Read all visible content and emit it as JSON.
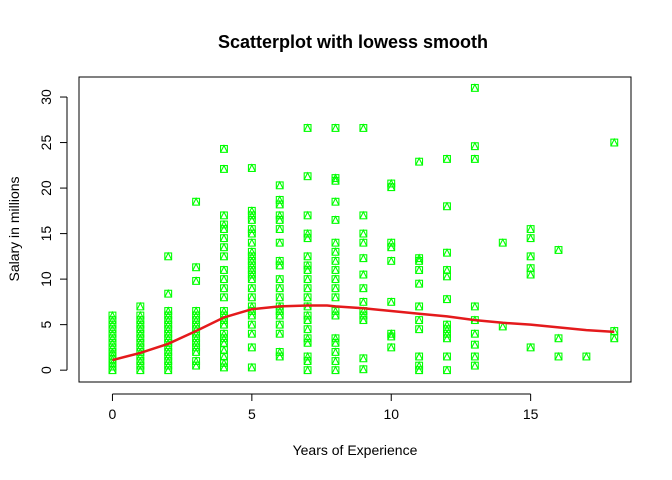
{
  "chart_data": {
    "type": "scatter",
    "title": "Scatterplot with lowess smooth",
    "xlabel": "Years of Experience",
    "ylabel": "Salary in millions",
    "xlim": [
      -1.2,
      18.6
    ],
    "ylim": [
      -1.3,
      32.2
    ],
    "x_ticks": [
      0,
      5,
      10,
      15
    ],
    "y_ticks": [
      0,
      5,
      10,
      15,
      20,
      25,
      30
    ],
    "grid": false,
    "legend": "none",
    "point_color": "#00ff00",
    "point_marker": "square-with-triangle",
    "line_color": "#e41a1c",
    "points": [
      [
        0,
        0.0
      ],
      [
        0,
        0.4
      ],
      [
        0,
        0.8
      ],
      [
        0,
        1.2
      ],
      [
        0,
        1.6
      ],
      [
        0,
        2.0
      ],
      [
        0,
        2.5
      ],
      [
        0,
        3.0
      ],
      [
        0,
        3.5
      ],
      [
        0,
        4.0
      ],
      [
        0,
        4.5
      ],
      [
        0,
        5.0
      ],
      [
        0,
        5.5
      ],
      [
        0,
        6.0
      ],
      [
        1,
        0.0
      ],
      [
        1,
        0.5
      ],
      [
        1,
        1.0
      ],
      [
        1,
        1.5
      ],
      [
        1,
        2.0
      ],
      [
        1,
        2.5
      ],
      [
        1,
        3.0
      ],
      [
        1,
        3.5
      ],
      [
        1,
        4.0
      ],
      [
        1,
        4.5
      ],
      [
        1,
        5.0
      ],
      [
        1,
        5.5
      ],
      [
        1,
        6.0
      ],
      [
        1,
        7.0
      ],
      [
        2,
        0.0
      ],
      [
        2,
        0.5
      ],
      [
        2,
        1.0
      ],
      [
        2,
        1.5
      ],
      [
        2,
        2.0
      ],
      [
        2,
        2.5
      ],
      [
        2,
        3.0
      ],
      [
        2,
        3.5
      ],
      [
        2,
        4.0
      ],
      [
        2,
        4.5
      ],
      [
        2,
        5.0
      ],
      [
        2,
        5.5
      ],
      [
        2,
        6.0
      ],
      [
        2,
        6.5
      ],
      [
        2,
        8.4
      ],
      [
        2,
        12.5
      ],
      [
        3,
        0.5
      ],
      [
        3,
        1.0
      ],
      [
        3,
        2.0
      ],
      [
        3,
        2.5
      ],
      [
        3,
        3.0
      ],
      [
        3,
        3.5
      ],
      [
        3,
        4.0
      ],
      [
        3,
        4.5
      ],
      [
        3,
        5.0
      ],
      [
        3,
        5.5
      ],
      [
        3,
        6.0
      ],
      [
        3,
        6.5
      ],
      [
        3,
        9.8
      ],
      [
        3,
        11.3
      ],
      [
        3,
        18.5
      ],
      [
        4,
        0.3
      ],
      [
        4,
        0.8
      ],
      [
        4,
        1.5
      ],
      [
        4,
        2.2
      ],
      [
        4,
        3.0
      ],
      [
        4,
        3.5
      ],
      [
        4,
        4.0
      ],
      [
        4,
        5.0
      ],
      [
        4,
        5.5
      ],
      [
        4,
        6.0
      ],
      [
        4,
        6.5
      ],
      [
        4,
        8.0
      ],
      [
        4,
        9.0
      ],
      [
        4,
        10.0
      ],
      [
        4,
        11.0
      ],
      [
        4,
        12.5
      ],
      [
        4,
        13.5
      ],
      [
        4,
        14.5
      ],
      [
        4,
        15.5
      ],
      [
        4,
        16.0
      ],
      [
        4,
        17.0
      ],
      [
        4,
        22.1
      ],
      [
        4,
        24.3
      ],
      [
        5,
        0.3
      ],
      [
        5,
        2.5
      ],
      [
        5,
        4.0
      ],
      [
        5,
        5.0
      ],
      [
        5,
        6.0
      ],
      [
        5,
        6.5
      ],
      [
        5,
        7.0
      ],
      [
        5,
        8.0
      ],
      [
        5,
        9.0
      ],
      [
        5,
        10.0
      ],
      [
        5,
        10.5
      ],
      [
        5,
        11.0
      ],
      [
        5,
        11.5
      ],
      [
        5,
        12.0
      ],
      [
        5,
        12.5
      ],
      [
        5,
        13.0
      ],
      [
        5,
        14.0
      ],
      [
        5,
        15.0
      ],
      [
        5,
        15.5
      ],
      [
        5,
        16.5
      ],
      [
        5,
        17.0
      ],
      [
        5,
        17.5
      ],
      [
        5,
        22.2
      ],
      [
        6,
        1.5
      ],
      [
        6,
        2.0
      ],
      [
        6,
        4.0
      ],
      [
        6,
        5.0
      ],
      [
        6,
        6.0
      ],
      [
        6,
        6.5
      ],
      [
        6,
        7.0
      ],
      [
        6,
        8.0
      ],
      [
        6,
        9.0
      ],
      [
        6,
        10.0
      ],
      [
        6,
        11.5
      ],
      [
        6,
        12.0
      ],
      [
        6,
        14.0
      ],
      [
        6,
        15.5
      ],
      [
        6,
        16.5
      ],
      [
        6,
        17.0
      ],
      [
        6,
        18.2
      ],
      [
        6,
        18.7
      ],
      [
        6,
        20.3
      ],
      [
        7,
        0.0
      ],
      [
        7,
        1.0
      ],
      [
        7,
        1.5
      ],
      [
        7,
        3.0
      ],
      [
        7,
        3.5
      ],
      [
        7,
        4.5
      ],
      [
        7,
        5.5
      ],
      [
        7,
        6.0
      ],
      [
        7,
        7.0
      ],
      [
        7,
        8.0
      ],
      [
        7,
        9.0
      ],
      [
        7,
        10.0
      ],
      [
        7,
        11.0
      ],
      [
        7,
        11.5
      ],
      [
        7,
        12.5
      ],
      [
        7,
        14.5
      ],
      [
        7,
        15.0
      ],
      [
        7,
        17.0
      ],
      [
        7,
        21.3
      ],
      [
        7,
        26.6
      ],
      [
        8,
        0.0
      ],
      [
        8,
        1.0
      ],
      [
        8,
        2.0
      ],
      [
        8,
        3.0
      ],
      [
        8,
        3.5
      ],
      [
        8,
        6.0
      ],
      [
        8,
        6.5
      ],
      [
        8,
        8.0
      ],
      [
        8,
        9.0
      ],
      [
        8,
        10.0
      ],
      [
        8,
        11.0
      ],
      [
        8,
        12.0
      ],
      [
        8,
        13.0
      ],
      [
        8,
        14.0
      ],
      [
        8,
        16.5
      ],
      [
        8,
        18.5
      ],
      [
        8,
        20.8
      ],
      [
        8,
        21.1
      ],
      [
        8,
        26.6
      ],
      [
        9,
        0.1
      ],
      [
        9,
        1.3
      ],
      [
        9,
        5.5
      ],
      [
        9,
        6.0
      ],
      [
        9,
        6.5
      ],
      [
        9,
        7.5
      ],
      [
        9,
        9.0
      ],
      [
        9,
        10.5
      ],
      [
        9,
        12.3
      ],
      [
        9,
        14.0
      ],
      [
        9,
        15.0
      ],
      [
        9,
        17.0
      ],
      [
        9,
        26.6
      ],
      [
        10,
        2.5
      ],
      [
        10,
        3.7
      ],
      [
        10,
        4.0
      ],
      [
        10,
        7.5
      ],
      [
        10,
        12.0
      ],
      [
        10,
        13.5
      ],
      [
        10,
        14.0
      ],
      [
        10,
        20.1
      ],
      [
        10,
        20.5
      ],
      [
        11,
        0.0
      ],
      [
        11,
        0.5
      ],
      [
        11,
        1.5
      ],
      [
        11,
        4.5
      ],
      [
        11,
        5.5
      ],
      [
        11,
        7.0
      ],
      [
        11,
        9.5
      ],
      [
        11,
        11.0
      ],
      [
        11,
        12.0
      ],
      [
        11,
        12.3
      ],
      [
        11,
        22.9
      ],
      [
        12,
        0.0
      ],
      [
        12,
        1.5
      ],
      [
        12,
        3.5
      ],
      [
        12,
        4.0
      ],
      [
        12,
        4.5
      ],
      [
        12,
        5.0
      ],
      [
        12,
        7.8
      ],
      [
        12,
        10.3
      ],
      [
        12,
        11.0
      ],
      [
        12,
        12.9
      ],
      [
        12,
        18.0
      ],
      [
        12,
        23.2
      ],
      [
        13,
        0.5
      ],
      [
        13,
        1.5
      ],
      [
        13,
        2.8
      ],
      [
        13,
        4.0
      ],
      [
        13,
        5.5
      ],
      [
        13,
        7.0
      ],
      [
        13,
        23.2
      ],
      [
        13,
        24.6
      ],
      [
        13,
        31.0
      ],
      [
        14,
        4.8
      ],
      [
        14,
        14.0
      ],
      [
        15,
        2.5
      ],
      [
        15,
        10.5
      ],
      [
        15,
        11.2
      ],
      [
        15,
        12.5
      ],
      [
        15,
        14.5
      ],
      [
        15,
        15.5
      ],
      [
        16,
        1.5
      ],
      [
        16,
        3.5
      ],
      [
        16,
        13.2
      ],
      [
        17,
        1.5
      ],
      [
        18,
        3.5
      ],
      [
        18,
        4.3
      ],
      [
        18,
        25.0
      ]
    ],
    "lowess": [
      [
        0,
        1.1
      ],
      [
        1,
        1.9
      ],
      [
        2,
        2.9
      ],
      [
        3,
        4.3
      ],
      [
        4,
        5.8
      ],
      [
        5,
        6.7
      ],
      [
        6,
        7.0
      ],
      [
        7,
        7.1
      ],
      [
        7.7,
        7.1
      ],
      [
        8,
        7.0
      ],
      [
        9,
        6.8
      ],
      [
        10,
        6.5
      ],
      [
        11,
        6.2
      ],
      [
        12,
        5.9
      ],
      [
        13,
        5.5
      ],
      [
        14,
        5.2
      ],
      [
        15,
        5.0
      ],
      [
        16,
        4.7
      ],
      [
        17,
        4.4
      ],
      [
        18,
        4.2
      ]
    ]
  }
}
